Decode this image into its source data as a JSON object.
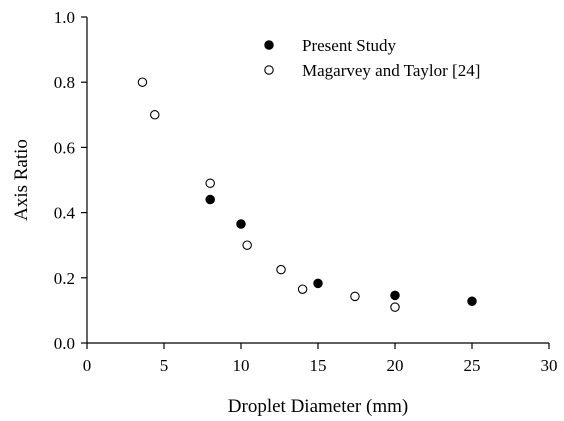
{
  "chart_data": {
    "type": "scatter",
    "title": "",
    "xlabel": "Droplet Diameter (mm)",
    "ylabel": "Axis Ratio",
    "xlim": [
      0,
      30
    ],
    "ylim": [
      0.0,
      1.0
    ],
    "x_ticks": [
      "0",
      "5",
      "10",
      "15",
      "20",
      "25",
      "30"
    ],
    "y_ticks": [
      "0.0",
      "0.2",
      "0.4",
      "0.6",
      "0.8",
      "1.0"
    ],
    "grid": false,
    "legend_position": "top-right",
    "series": [
      {
        "name": "Present Study",
        "marker": "filled-circle",
        "color": "#000000",
        "points": [
          {
            "x": 8,
            "y": 0.44
          },
          {
            "x": 10,
            "y": 0.365
          },
          {
            "x": 15,
            "y": 0.183
          },
          {
            "x": 20,
            "y": 0.146
          },
          {
            "x": 25,
            "y": 0.128
          }
        ]
      },
      {
        "name": "Magarvey and Taylor [24]",
        "marker": "open-circle",
        "color": "#000000",
        "points": [
          {
            "x": 3.6,
            "y": 0.8
          },
          {
            "x": 4.4,
            "y": 0.7
          },
          {
            "x": 8,
            "y": 0.49
          },
          {
            "x": 10.4,
            "y": 0.3
          },
          {
            "x": 12.6,
            "y": 0.225
          },
          {
            "x": 14,
            "y": 0.165
          },
          {
            "x": 17.4,
            "y": 0.143
          },
          {
            "x": 20,
            "y": 0.11
          }
        ]
      }
    ]
  }
}
